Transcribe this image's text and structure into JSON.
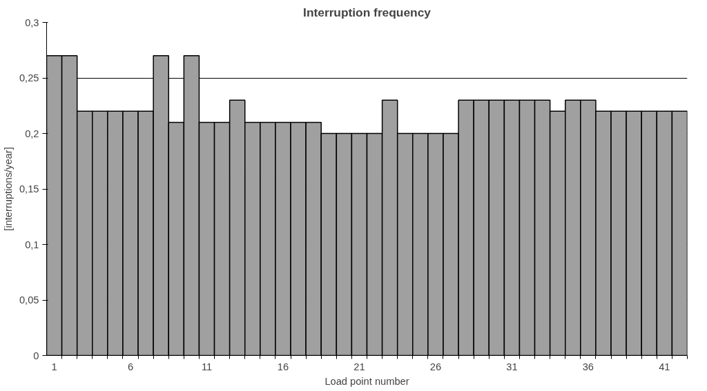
{
  "chart_data": {
    "type": "bar",
    "title": "Interruption frequency",
    "xlabel": "Load point number",
    "ylabel": "[interruptions/year]",
    "categories": [
      "1",
      null,
      null,
      null,
      null,
      "6",
      null,
      null,
      null,
      null,
      "11",
      null,
      null,
      null,
      null,
      "16",
      null,
      null,
      null,
      null,
      "21",
      null,
      null,
      null,
      null,
      "26",
      null,
      null,
      null,
      null,
      "31",
      null,
      null,
      null,
      null,
      "36",
      null,
      null,
      null,
      null,
      "41",
      null
    ],
    "values": [
      0.27,
      0.27,
      0.22,
      0.22,
      0.22,
      0.22,
      0.22,
      0.27,
      0.21,
      0.27,
      0.21,
      0.21,
      0.23,
      0.21,
      0.21,
      0.21,
      0.21,
      0.21,
      0.2,
      0.2,
      0.2,
      0.2,
      0.23,
      0.2,
      0.2,
      0.2,
      0.2,
      0.23,
      0.23,
      0.23,
      0.23,
      0.23,
      0.23,
      0.22,
      0.23,
      0.23,
      0.22,
      0.22,
      0.22,
      0.22,
      0.22,
      0.22
    ],
    "color": "#a0a0a0",
    "ylim": [
      0,
      0.3
    ],
    "yticks": [
      0,
      {
        "value": 0.05,
        "label": "0,05"
      },
      {
        "value": 0.1,
        "label": "0,1"
      },
      {
        "value": 0.15,
        "label": "0,15"
      },
      {
        "value": 0.2,
        "label": "0,2"
      },
      {
        "value": 0.25,
        "label": "0,25"
      },
      {
        "value": 0.3,
        "label": "0,3"
      }
    ],
    "grid": "y"
  }
}
